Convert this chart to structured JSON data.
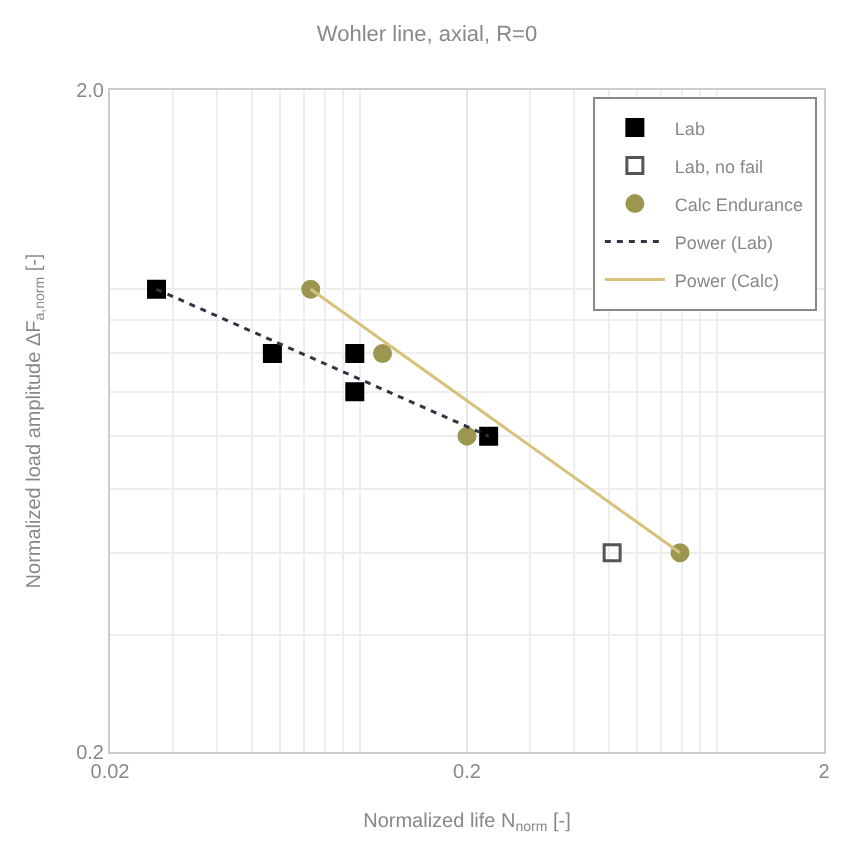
{
  "chart_data": {
    "type": "scatter",
    "title": "Wohler line, axial, R=0",
    "xlabel": "Normalized life N$_{norm}$ [-]",
    "ylabel": "Normalized load amplitude ΔF$_{a,norm}$ [-]",
    "log": "xy",
    "grid": true,
    "legend": "top right",
    "xlim": [
      0.02,
      2
    ],
    "xticks": [
      0.02,
      0.2,
      2
    ],
    "ylim": [
      0.2,
      2
    ],
    "yticks": [
      {
        "value": 0.2,
        "label": "0.2"
      },
      {
        "value": 2,
        "label": "2.0"
      }
    ],
    "series": [
      {
        "name": "Lab",
        "marker": "square",
        "color": "#000000",
        "x": [
          0.027,
          0.057,
          0.097,
          0.097,
          0.23
        ],
        "values": [
          1.0,
          0.8,
          0.8,
          0.7,
          0.6
        ]
      },
      {
        "name": "Lab, no fail",
        "marker": "square-open",
        "color": "#555555",
        "x": [
          0.51
        ],
        "values": [
          0.4
        ]
      },
      {
        "name": "Calc Endurance",
        "marker": "circle",
        "color": "#9c9650",
        "x": [
          0.073,
          0.116,
          0.2,
          0.79
        ],
        "values": [
          1.0,
          0.8,
          0.6,
          0.4
        ]
      },
      {
        "name": "Power (Lab)",
        "type": "line",
        "line_style": "dotted",
        "marker": "none",
        "color": "#333344",
        "x": [
          0.027,
          0.23
        ],
        "values": [
          1.0,
          0.6
        ]
      },
      {
        "name": "Power (Calc)",
        "type": "line",
        "line_style": "solid",
        "marker": "none",
        "color": "#d6c27a",
        "x": [
          0.073,
          0.79
        ],
        "values": [
          1.0,
          0.4
        ]
      }
    ]
  }
}
